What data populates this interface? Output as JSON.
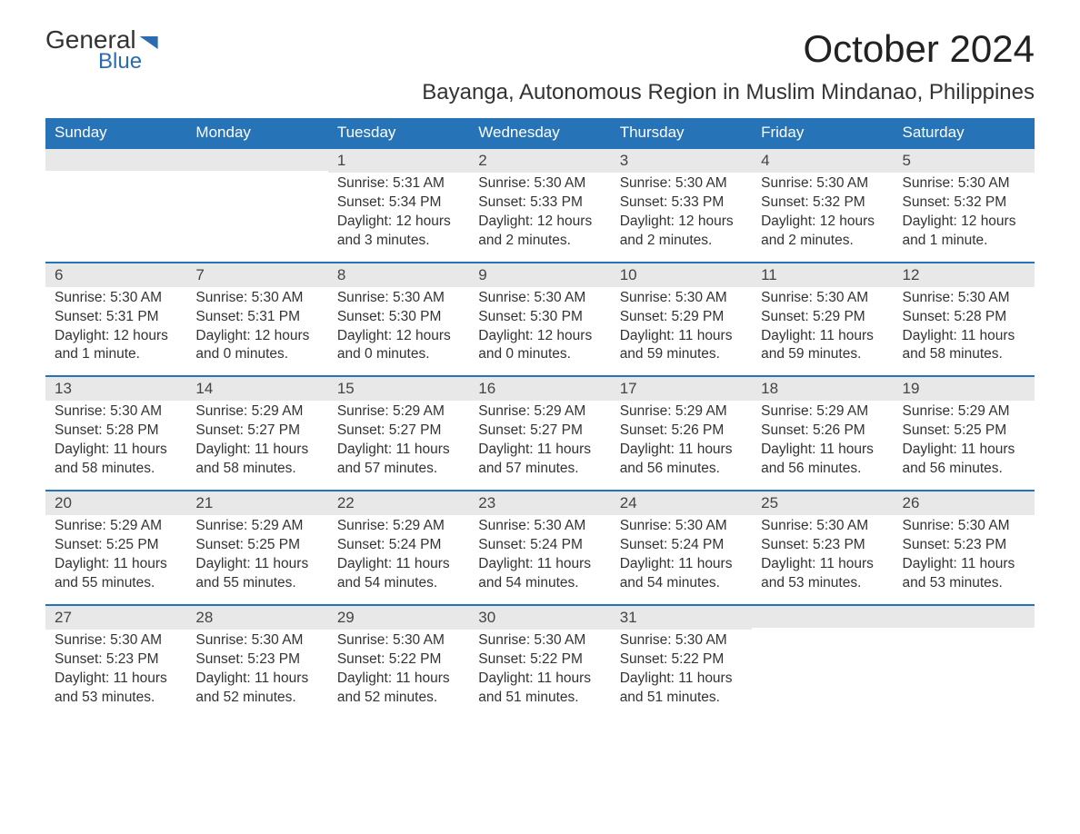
{
  "logo": {
    "word1": "General",
    "word2": "Blue"
  },
  "title": "October 2024",
  "subtitle": "Bayanga, Autonomous Region in Muslim Mindanao, Philippines",
  "colors": {
    "header_bg": "#2673b8",
    "header_text": "#ffffff",
    "row_border": "#2673b8",
    "daynum_bg": "#e8e8e8",
    "text": "#333333",
    "accent": "#2b6cb0",
    "background": "#ffffff"
  },
  "typography": {
    "title_fontsize": 42,
    "subtitle_fontsize": 24,
    "header_fontsize": 17,
    "body_fontsize": 15.5,
    "font_family": "Arial"
  },
  "weekdays": [
    "Sunday",
    "Monday",
    "Tuesday",
    "Wednesday",
    "Thursday",
    "Friday",
    "Saturday"
  ],
  "weeks": [
    [
      {
        "day": "",
        "sunrise": "",
        "sunset": "",
        "daylight1": "",
        "daylight2": ""
      },
      {
        "day": "",
        "sunrise": "",
        "sunset": "",
        "daylight1": "",
        "daylight2": ""
      },
      {
        "day": "1",
        "sunrise": "Sunrise: 5:31 AM",
        "sunset": "Sunset: 5:34 PM",
        "daylight1": "Daylight: 12 hours",
        "daylight2": "and 3 minutes."
      },
      {
        "day": "2",
        "sunrise": "Sunrise: 5:30 AM",
        "sunset": "Sunset: 5:33 PM",
        "daylight1": "Daylight: 12 hours",
        "daylight2": "and 2 minutes."
      },
      {
        "day": "3",
        "sunrise": "Sunrise: 5:30 AM",
        "sunset": "Sunset: 5:33 PM",
        "daylight1": "Daylight: 12 hours",
        "daylight2": "and 2 minutes."
      },
      {
        "day": "4",
        "sunrise": "Sunrise: 5:30 AM",
        "sunset": "Sunset: 5:32 PM",
        "daylight1": "Daylight: 12 hours",
        "daylight2": "and 2 minutes."
      },
      {
        "day": "5",
        "sunrise": "Sunrise: 5:30 AM",
        "sunset": "Sunset: 5:32 PM",
        "daylight1": "Daylight: 12 hours",
        "daylight2": "and 1 minute."
      }
    ],
    [
      {
        "day": "6",
        "sunrise": "Sunrise: 5:30 AM",
        "sunset": "Sunset: 5:31 PM",
        "daylight1": "Daylight: 12 hours",
        "daylight2": "and 1 minute."
      },
      {
        "day": "7",
        "sunrise": "Sunrise: 5:30 AM",
        "sunset": "Sunset: 5:31 PM",
        "daylight1": "Daylight: 12 hours",
        "daylight2": "and 0 minutes."
      },
      {
        "day": "8",
        "sunrise": "Sunrise: 5:30 AM",
        "sunset": "Sunset: 5:30 PM",
        "daylight1": "Daylight: 12 hours",
        "daylight2": "and 0 minutes."
      },
      {
        "day": "9",
        "sunrise": "Sunrise: 5:30 AM",
        "sunset": "Sunset: 5:30 PM",
        "daylight1": "Daylight: 12 hours",
        "daylight2": "and 0 minutes."
      },
      {
        "day": "10",
        "sunrise": "Sunrise: 5:30 AM",
        "sunset": "Sunset: 5:29 PM",
        "daylight1": "Daylight: 11 hours",
        "daylight2": "and 59 minutes."
      },
      {
        "day": "11",
        "sunrise": "Sunrise: 5:30 AM",
        "sunset": "Sunset: 5:29 PM",
        "daylight1": "Daylight: 11 hours",
        "daylight2": "and 59 minutes."
      },
      {
        "day": "12",
        "sunrise": "Sunrise: 5:30 AM",
        "sunset": "Sunset: 5:28 PM",
        "daylight1": "Daylight: 11 hours",
        "daylight2": "and 58 minutes."
      }
    ],
    [
      {
        "day": "13",
        "sunrise": "Sunrise: 5:30 AM",
        "sunset": "Sunset: 5:28 PM",
        "daylight1": "Daylight: 11 hours",
        "daylight2": "and 58 minutes."
      },
      {
        "day": "14",
        "sunrise": "Sunrise: 5:29 AM",
        "sunset": "Sunset: 5:27 PM",
        "daylight1": "Daylight: 11 hours",
        "daylight2": "and 58 minutes."
      },
      {
        "day": "15",
        "sunrise": "Sunrise: 5:29 AM",
        "sunset": "Sunset: 5:27 PM",
        "daylight1": "Daylight: 11 hours",
        "daylight2": "and 57 minutes."
      },
      {
        "day": "16",
        "sunrise": "Sunrise: 5:29 AM",
        "sunset": "Sunset: 5:27 PM",
        "daylight1": "Daylight: 11 hours",
        "daylight2": "and 57 minutes."
      },
      {
        "day": "17",
        "sunrise": "Sunrise: 5:29 AM",
        "sunset": "Sunset: 5:26 PM",
        "daylight1": "Daylight: 11 hours",
        "daylight2": "and 56 minutes."
      },
      {
        "day": "18",
        "sunrise": "Sunrise: 5:29 AM",
        "sunset": "Sunset: 5:26 PM",
        "daylight1": "Daylight: 11 hours",
        "daylight2": "and 56 minutes."
      },
      {
        "day": "19",
        "sunrise": "Sunrise: 5:29 AM",
        "sunset": "Sunset: 5:25 PM",
        "daylight1": "Daylight: 11 hours",
        "daylight2": "and 56 minutes."
      }
    ],
    [
      {
        "day": "20",
        "sunrise": "Sunrise: 5:29 AM",
        "sunset": "Sunset: 5:25 PM",
        "daylight1": "Daylight: 11 hours",
        "daylight2": "and 55 minutes."
      },
      {
        "day": "21",
        "sunrise": "Sunrise: 5:29 AM",
        "sunset": "Sunset: 5:25 PM",
        "daylight1": "Daylight: 11 hours",
        "daylight2": "and 55 minutes."
      },
      {
        "day": "22",
        "sunrise": "Sunrise: 5:29 AM",
        "sunset": "Sunset: 5:24 PM",
        "daylight1": "Daylight: 11 hours",
        "daylight2": "and 54 minutes."
      },
      {
        "day": "23",
        "sunrise": "Sunrise: 5:30 AM",
        "sunset": "Sunset: 5:24 PM",
        "daylight1": "Daylight: 11 hours",
        "daylight2": "and 54 minutes."
      },
      {
        "day": "24",
        "sunrise": "Sunrise: 5:30 AM",
        "sunset": "Sunset: 5:24 PM",
        "daylight1": "Daylight: 11 hours",
        "daylight2": "and 54 minutes."
      },
      {
        "day": "25",
        "sunrise": "Sunrise: 5:30 AM",
        "sunset": "Sunset: 5:23 PM",
        "daylight1": "Daylight: 11 hours",
        "daylight2": "and 53 minutes."
      },
      {
        "day": "26",
        "sunrise": "Sunrise: 5:30 AM",
        "sunset": "Sunset: 5:23 PM",
        "daylight1": "Daylight: 11 hours",
        "daylight2": "and 53 minutes."
      }
    ],
    [
      {
        "day": "27",
        "sunrise": "Sunrise: 5:30 AM",
        "sunset": "Sunset: 5:23 PM",
        "daylight1": "Daylight: 11 hours",
        "daylight2": "and 53 minutes."
      },
      {
        "day": "28",
        "sunrise": "Sunrise: 5:30 AM",
        "sunset": "Sunset: 5:23 PM",
        "daylight1": "Daylight: 11 hours",
        "daylight2": "and 52 minutes."
      },
      {
        "day": "29",
        "sunrise": "Sunrise: 5:30 AM",
        "sunset": "Sunset: 5:22 PM",
        "daylight1": "Daylight: 11 hours",
        "daylight2": "and 52 minutes."
      },
      {
        "day": "30",
        "sunrise": "Sunrise: 5:30 AM",
        "sunset": "Sunset: 5:22 PM",
        "daylight1": "Daylight: 11 hours",
        "daylight2": "and 51 minutes."
      },
      {
        "day": "31",
        "sunrise": "Sunrise: 5:30 AM",
        "sunset": "Sunset: 5:22 PM",
        "daylight1": "Daylight: 11 hours",
        "daylight2": "and 51 minutes."
      },
      {
        "day": "",
        "sunrise": "",
        "sunset": "",
        "daylight1": "",
        "daylight2": ""
      },
      {
        "day": "",
        "sunrise": "",
        "sunset": "",
        "daylight1": "",
        "daylight2": ""
      }
    ]
  ]
}
